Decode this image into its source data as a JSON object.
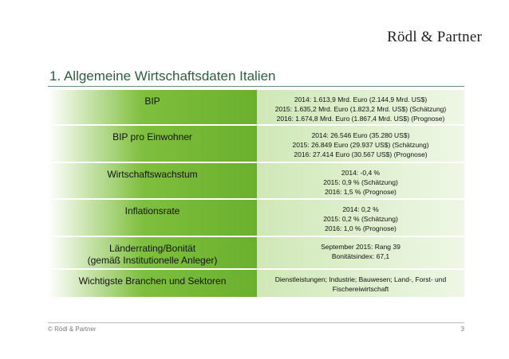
{
  "header": {
    "logo": "Rödl & Partner",
    "title": "1. Allgemeine Wirtschaftsdaten Italien"
  },
  "table": {
    "rows": [
      {
        "label": [
          "BIP"
        ],
        "values": [
          "2014: 1.613,9 Mrd. Euro (2.144,9 Mrd. US$)",
          "2015: 1.635,2 Mrd. Euro (1.823,2 Mrd. US$) (Schätzung)",
          "2016: 1.674,8 Mrd. Euro (1.867,4 Mrd. US$) (Prognose)"
        ]
      },
      {
        "label": [
          "BIP pro Einwohner"
        ],
        "values": [
          "2014: 26.546 Euro (35.280 US$)",
          "2015: 26.849 Euro (29.937 US$) (Schätzung)",
          "2016: 27.414 Euro (30.567 US$) (Prognose)"
        ]
      },
      {
        "label": [
          "Wirtschaftswachstum"
        ],
        "values": [
          "2014: -0,4 %",
          "2015: 0,9 % (Schätzung)",
          "2016: 1,5 % (Prognose)"
        ]
      },
      {
        "label": [
          "Inflationsrate"
        ],
        "values": [
          "2014: 0,2 %",
          "2015: 0,2 % (Schätzung)",
          "2016: 1,0 % (Prognose)"
        ]
      },
      {
        "label": [
          "Länderrating/Bonität",
          "(gemäß Institutionelle Anleger)"
        ],
        "values": [
          "September 2015: Rang 39",
          "Bonitätsindex: 67,1"
        ]
      },
      {
        "label": [
          "Wichtigste Branchen und Sektoren"
        ],
        "values": [
          "Dienstleistungen; Industrie; Bauwesen; Land-, Forst- und",
          "Fischereiwirtschaft"
        ]
      }
    ]
  },
  "footer": {
    "copyright": "© Rödl & Partner",
    "page_number": "3"
  }
}
